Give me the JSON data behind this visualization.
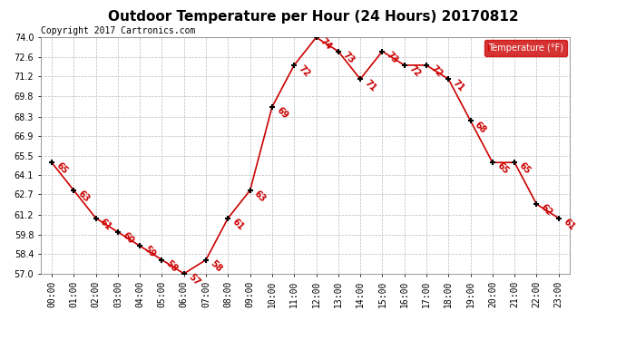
{
  "title": "Outdoor Temperature per Hour (24 Hours) 20170812",
  "copyright_text": "Copyright 2017 Cartronics.com",
  "legend_label": "Temperature (°F)",
  "hours": [
    0,
    1,
    2,
    3,
    4,
    5,
    6,
    7,
    8,
    9,
    10,
    11,
    12,
    13,
    14,
    15,
    16,
    17,
    18,
    19,
    20,
    21,
    22,
    23
  ],
  "hour_labels": [
    "00:00",
    "01:00",
    "02:00",
    "03:00",
    "04:00",
    "05:00",
    "06:00",
    "07:00",
    "08:00",
    "09:00",
    "10:00",
    "11:00",
    "12:00",
    "13:00",
    "14:00",
    "15:00",
    "16:00",
    "17:00",
    "18:00",
    "19:00",
    "20:00",
    "21:00",
    "22:00",
    "23:00"
  ],
  "temperatures": [
    65,
    63,
    61,
    60,
    59,
    58,
    57,
    58,
    61,
    63,
    69,
    72,
    74,
    73,
    71,
    73,
    72,
    72,
    71,
    68,
    65,
    65,
    62,
    61
  ],
  "ylim": [
    57.0,
    74.0
  ],
  "yticks": [
    57.0,
    58.4,
    59.8,
    61.2,
    62.7,
    64.1,
    65.5,
    66.9,
    68.3,
    69.8,
    71.2,
    72.6,
    74.0
  ],
  "line_color": "#cc0000",
  "marker_color": "#000000",
  "label_color": "#cc0000",
  "bg_color": "#ffffff",
  "grid_color": "#bbbbbb",
  "legend_bg": "#cc0000",
  "legend_fg": "#ffffff",
  "title_fontsize": 11,
  "label_fontsize": 7,
  "copyright_fontsize": 7,
  "tick_fontsize": 7
}
